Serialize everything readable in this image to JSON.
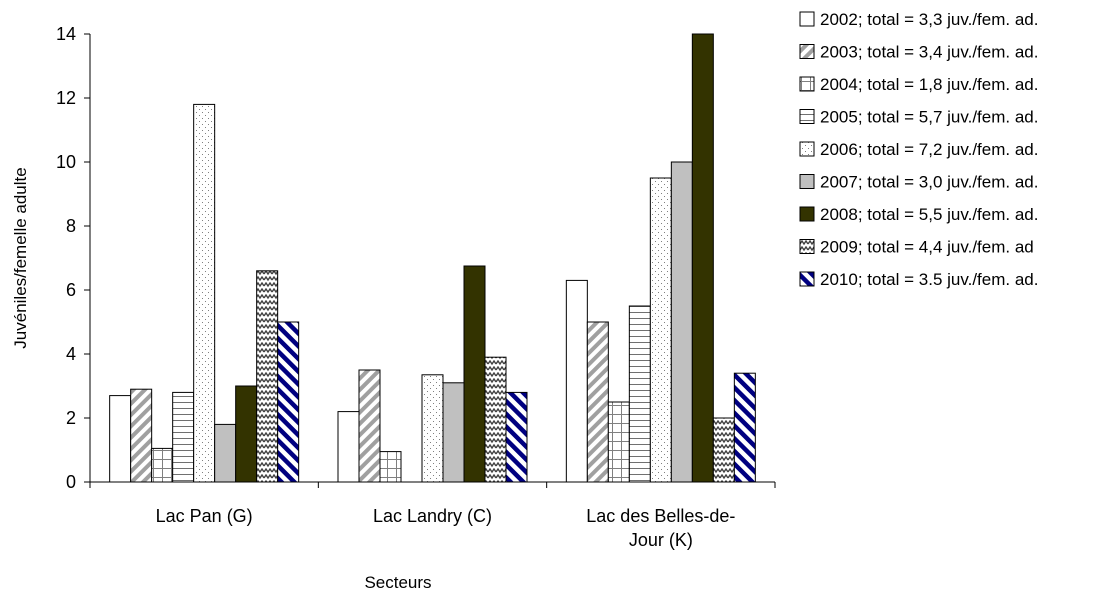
{
  "chart_data": {
    "type": "bar",
    "title": "",
    "xlabel": "Secteurs",
    "ylabel": "Juvéniles/femelle adulte",
    "ylim": [
      0,
      14
    ],
    "yticks": [
      "0",
      "2",
      "4",
      "6",
      "8",
      "10",
      "12",
      "14"
    ],
    "categories": [
      "Lac Pan (G)",
      "Lac Landry (C)",
      "Lac des Belles-de-Jour (K)"
    ],
    "category_label_lines": [
      [
        "Lac Pan (G)"
      ],
      [
        "Lac Landry (C)"
      ],
      [
        "Lac des Belles-de-",
        "Jour (K)"
      ]
    ],
    "legend_position": "right",
    "series": [
      {
        "name": "2002; total = 3,3 juv./fem. ad.",
        "values": [
          2.7,
          2.2,
          6.3
        ],
        "pattern": "solid-white",
        "color": "#ffffff"
      },
      {
        "name": "2003; total = 3,4 juv./fem. ad.",
        "values": [
          2.9,
          3.5,
          5.0
        ],
        "pattern": "diagonal-gray",
        "color": "#a0a0a0"
      },
      {
        "name": "2004; total = 1,8 juv./fem. ad.",
        "values": [
          1.05,
          0.95,
          2.5
        ],
        "pattern": "grid",
        "color": "#808080"
      },
      {
        "name": "2005; total = 5,7 juv./fem. ad.",
        "values": [
          2.8,
          null,
          5.5
        ],
        "pattern": "horizontal-lines",
        "color": "#808080"
      },
      {
        "name": "2006; total = 7,2 juv./fem. ad.",
        "values": [
          11.8,
          3.35,
          9.5
        ],
        "pattern": "dots",
        "color": "#909090"
      },
      {
        "name": "2007; total = 3,0 juv./fem. ad.",
        "values": [
          1.8,
          3.1,
          10.0
        ],
        "pattern": "solid-gray",
        "color": "#c0c0c0"
      },
      {
        "name": "2008; total = 5,5 juv./fem. ad.",
        "values": [
          3.0,
          6.75,
          14.0
        ],
        "pattern": "solid-dark",
        "color": "#333300"
      },
      {
        "name": "2009; total = 4,4 juv./fem. ad",
        "values": [
          6.6,
          3.9,
          2.0
        ],
        "pattern": "zigzag",
        "color": "#404040"
      },
      {
        "name": "2010; total = 3.5 juv./fem. ad.",
        "values": [
          5.0,
          2.8,
          3.4
        ],
        "pattern": "diagonal-navy",
        "color": "#000080"
      }
    ]
  }
}
